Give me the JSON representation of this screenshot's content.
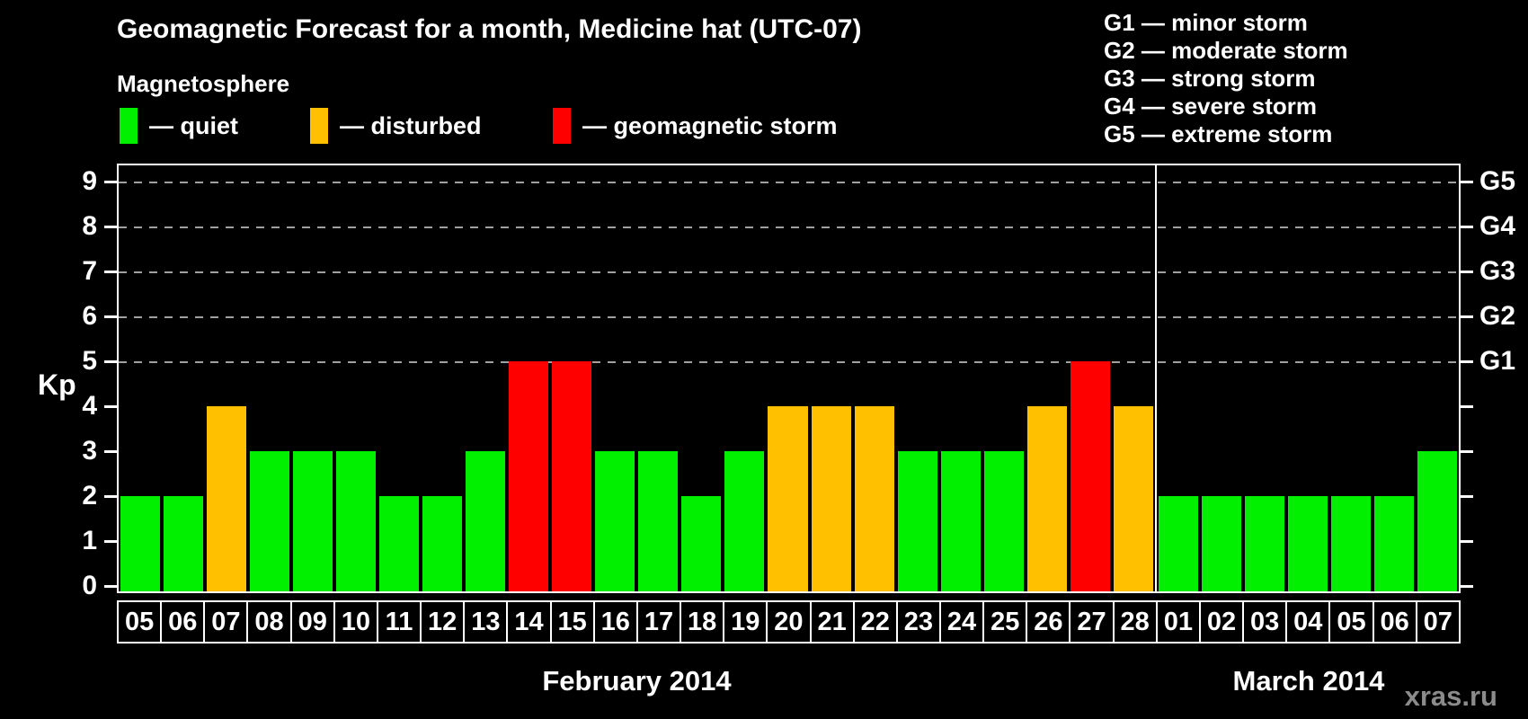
{
  "watermark": "xras.ru",
  "chart_data": {
    "type": "bar",
    "title": "Geomagnetic Forecast for a month, Medicine hat (UTC-07)",
    "ylabel": "Kp",
    "ylim": [
      0,
      9.4
    ],
    "yticks": [
      0,
      1,
      2,
      3,
      4,
      5,
      6,
      7,
      8,
      9
    ],
    "gridlines_at": [
      5,
      6,
      7,
      8,
      9
    ],
    "grid_style": "dashed horizontal gray lines at Kp 5-9",
    "legend_position": "top-left",
    "legend": {
      "heading": "Magnetosphere",
      "items": [
        {
          "name": "quiet",
          "label": "— quiet",
          "color": "#00f000"
        },
        {
          "name": "disturbed",
          "label": "— disturbed",
          "color": "#ffc000"
        },
        {
          "name": "storm",
          "label": "— geomagnetic storm",
          "color": "#ff0000"
        }
      ]
    },
    "storm_scale": {
      "items": [
        {
          "code": "G1",
          "kp": 5,
          "label": "G1 — minor storm"
        },
        {
          "code": "G2",
          "kp": 6,
          "label": "G2 — moderate storm"
        },
        {
          "code": "G3",
          "kp": 7,
          "label": "G3 — strong storm"
        },
        {
          "code": "G4",
          "kp": 8,
          "label": "G4 — severe storm"
        },
        {
          "code": "G5",
          "kp": 9,
          "label": "G5 — extreme storm"
        }
      ]
    },
    "status_colors": {
      "quiet": "#00f000",
      "disturbed": "#ffc000",
      "storm": "#ff0000"
    },
    "months": [
      {
        "label": "February 2014",
        "days": [
          {
            "day": "05",
            "kp": 2,
            "status": "quiet"
          },
          {
            "day": "06",
            "kp": 2,
            "status": "quiet"
          },
          {
            "day": "07",
            "kp": 4,
            "status": "disturbed"
          },
          {
            "day": "08",
            "kp": 3,
            "status": "quiet"
          },
          {
            "day": "09",
            "kp": 3,
            "status": "quiet"
          },
          {
            "day": "10",
            "kp": 3,
            "status": "quiet"
          },
          {
            "day": "11",
            "kp": 2,
            "status": "quiet"
          },
          {
            "day": "12",
            "kp": 2,
            "status": "quiet"
          },
          {
            "day": "13",
            "kp": 3,
            "status": "quiet"
          },
          {
            "day": "14",
            "kp": 5,
            "status": "storm"
          },
          {
            "day": "15",
            "kp": 5,
            "status": "storm"
          },
          {
            "day": "16",
            "kp": 3,
            "status": "quiet"
          },
          {
            "day": "17",
            "kp": 3,
            "status": "quiet"
          },
          {
            "day": "18",
            "kp": 2,
            "status": "quiet"
          },
          {
            "day": "19",
            "kp": 3,
            "status": "quiet"
          },
          {
            "day": "20",
            "kp": 4,
            "status": "disturbed"
          },
          {
            "day": "21",
            "kp": 4,
            "status": "disturbed"
          },
          {
            "day": "22",
            "kp": 4,
            "status": "disturbed"
          },
          {
            "day": "23",
            "kp": 3,
            "status": "quiet"
          },
          {
            "day": "24",
            "kp": 3,
            "status": "quiet"
          },
          {
            "day": "25",
            "kp": 3,
            "status": "quiet"
          },
          {
            "day": "26",
            "kp": 4,
            "status": "disturbed"
          },
          {
            "day": "27",
            "kp": 5,
            "status": "storm"
          },
          {
            "day": "28",
            "kp": 4,
            "status": "disturbed"
          }
        ]
      },
      {
        "label": "March 2014",
        "days": [
          {
            "day": "01",
            "kp": 2,
            "status": "quiet"
          },
          {
            "day": "02",
            "kp": 2,
            "status": "quiet"
          },
          {
            "day": "03",
            "kp": 2,
            "status": "quiet"
          },
          {
            "day": "04",
            "kp": 2,
            "status": "quiet"
          },
          {
            "day": "05",
            "kp": 2,
            "status": "quiet"
          },
          {
            "day": "06",
            "kp": 2,
            "status": "quiet"
          },
          {
            "day": "07",
            "kp": 3,
            "status": "quiet"
          }
        ]
      }
    ]
  }
}
